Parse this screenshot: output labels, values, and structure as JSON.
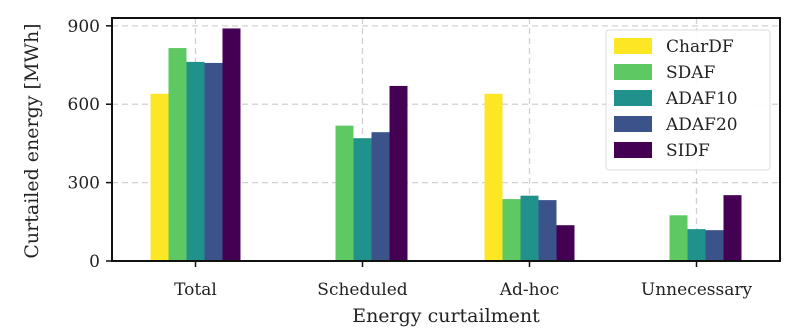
{
  "chart_data": {
    "type": "bar",
    "title": "",
    "xlabel": "Energy curtailment",
    "ylabel": "Curtailed energy [MWh]",
    "ylim": [
      0,
      930
    ],
    "yticks": [
      0,
      300,
      600,
      900
    ],
    "categories": [
      "Total",
      "Scheduled",
      "Ad-hoc",
      "Unnecessary"
    ],
    "grid": true,
    "legend_position": "top-right",
    "series": [
      {
        "name": "CharDF",
        "color": "#fde725",
        "values": [
          640,
          null,
          640,
          null
        ]
      },
      {
        "name": "SDAF",
        "color": "#5ec962",
        "values": [
          815,
          518,
          237,
          175
        ]
      },
      {
        "name": "ADAF10",
        "color": "#21918c",
        "values": [
          762,
          470,
          250,
          122
        ]
      },
      {
        "name": "ADAF20",
        "color": "#3b528b",
        "values": [
          758,
          493,
          233,
          118
        ]
      },
      {
        "name": "SIDF",
        "color": "#440154",
        "values": [
          890,
          670,
          137,
          252
        ]
      }
    ]
  }
}
